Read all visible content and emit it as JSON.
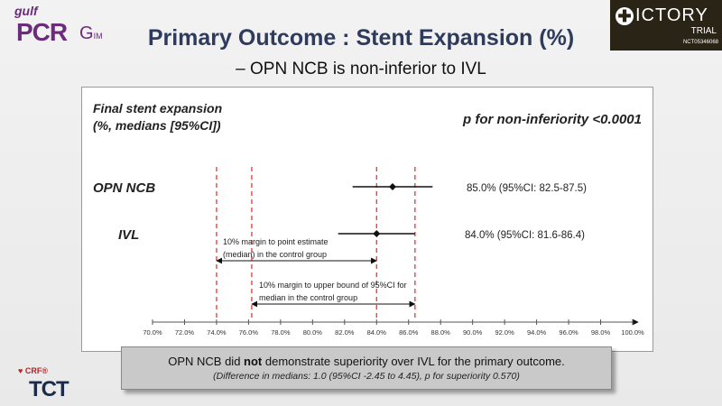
{
  "header": {
    "logo_gulf": "gulf",
    "logo_pcr": "PCR",
    "logo_gim": "G",
    "logo_im": "IM",
    "title": "Primary Outcome : Stent Expansion (%)",
    "subtitle": "– OPN NCB is non-inferior to IVL",
    "victory_word": "ICTORY",
    "victory_trial": "TRIAL",
    "victory_nct": "NCT05346068"
  },
  "chart_data": {
    "type": "forest",
    "ylabel": "Final stent expansion (%, medians [95%CI])",
    "pvalue_text": "p for non-inferiority <0.0001",
    "xlim": [
      70,
      100
    ],
    "xticks": [
      "70.0%",
      "72.0%",
      "74.0%",
      "76.0%",
      "78.0%",
      "80.0%",
      "82.0%",
      "84.0%",
      "86.0%",
      "88.0%",
      "90.0%",
      "92.0%",
      "94.0%",
      "96.0%",
      "98.0%",
      "100.0%"
    ],
    "series": [
      {
        "name": "OPN NCB",
        "estimate": 85.0,
        "ci": [
          82.5,
          87.5
        ],
        "label": "85.0% (95%CI: 82.5-87.5)"
      },
      {
        "name": "IVL",
        "estimate": 84.0,
        "ci": [
          81.6,
          86.4
        ],
        "label": "84.0% (95%CI: 81.6-86.4)"
      }
    ],
    "reference_lines": [
      74.0,
      76.2,
      84.0,
      86.4
    ],
    "annotations": [
      {
        "text": [
          "10% margin to point estimate",
          "(median) in the control group"
        ],
        "from": 74.0,
        "to": 84.0
      },
      {
        "text": [
          "10% margin to upper bound of 95%CI for",
          "median in the control group"
        ],
        "from": 76.2,
        "to": 86.4
      }
    ]
  },
  "footer": {
    "line1_pre": "OPN NCB did ",
    "line1_bold": "not",
    "line1_post": " demonstrate superiority over IVL for the primary outcome.",
    "line2": "(Difference in medians: 1.0 (95%CI -2.45 to 4.45), p for superiority 0.570)"
  },
  "logos": {
    "crf": "CRF",
    "tct": "TCT"
  }
}
